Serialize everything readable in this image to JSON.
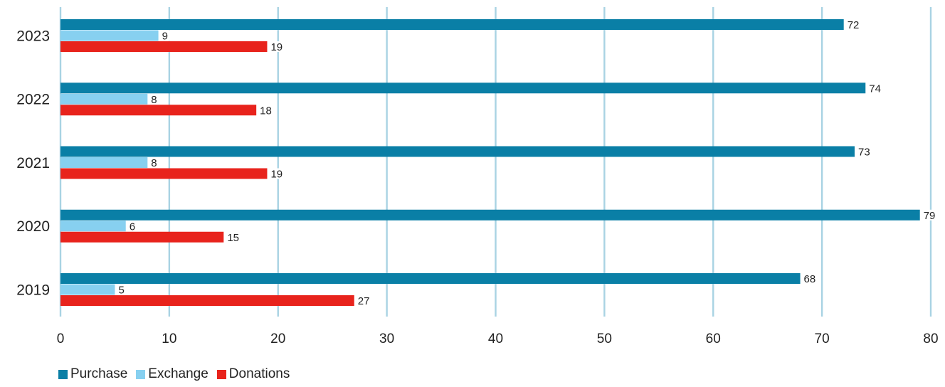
{
  "chart_data": {
    "type": "bar",
    "orientation": "horizontal",
    "title": "",
    "xlabel": "",
    "ylabel": "",
    "categories": [
      "2023",
      "2022",
      "2021",
      "2020",
      "2019"
    ],
    "series": [
      {
        "name": "Purchase",
        "color": "#0a7fa6",
        "values": [
          72,
          74,
          73,
          79,
          68
        ]
      },
      {
        "name": "Exchange",
        "color": "#87d0f0",
        "values": [
          9,
          8,
          8,
          6,
          5
        ]
      },
      {
        "name": "Donations",
        "color": "#e8231c",
        "values": [
          19,
          18,
          19,
          15,
          27
        ]
      }
    ],
    "xlim": [
      0,
      80
    ],
    "xticks": [
      0,
      10,
      20,
      30,
      40,
      50,
      60,
      70,
      80
    ],
    "grid": true,
    "gridline_color": "#a9d3e3",
    "legend_position": "bottom-left",
    "data_labels": true
  }
}
